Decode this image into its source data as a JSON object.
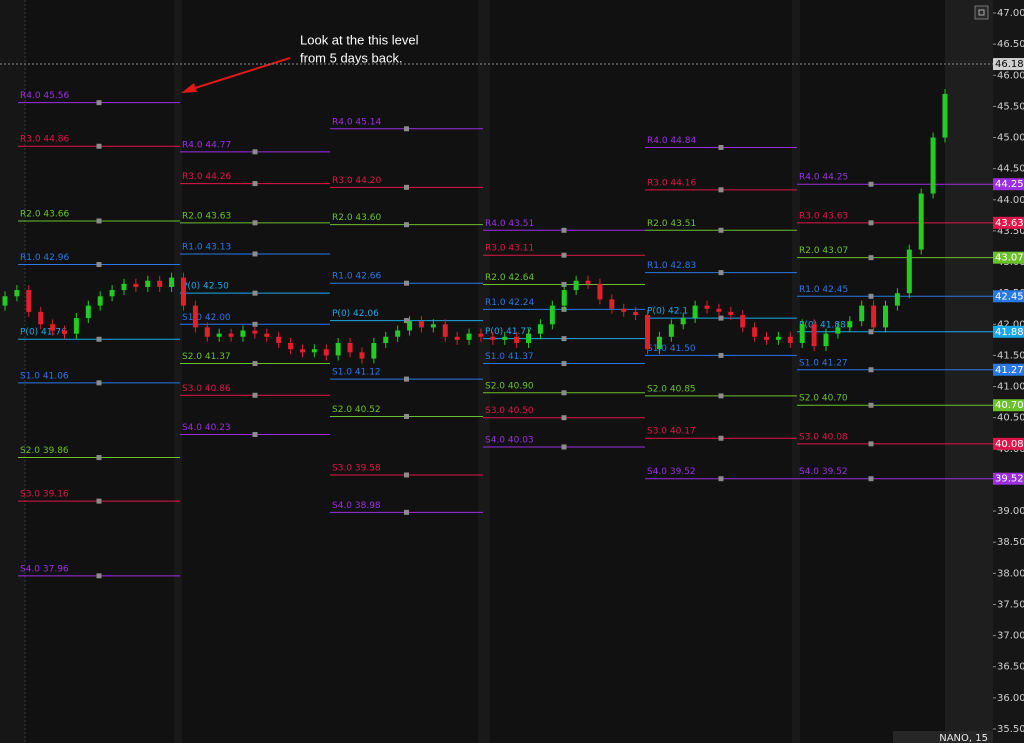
{
  "chart_data": {
    "type": "candlestick",
    "annotation": [
      "Look at the this level",
      "from 5 days back."
    ],
    "footer_label": "NANO, 15",
    "ylim": [
      35.5,
      47
    ],
    "yticks": [
      {
        "value": 35.5,
        "label": "35.50"
      },
      {
        "value": 36,
        "label": "36.00"
      },
      {
        "value": 36.5,
        "label": "36.50"
      },
      {
        "value": 37,
        "label": "37.00"
      },
      {
        "value": 37.5,
        "label": "37.50"
      },
      {
        "value": 38,
        "label": "38.00"
      },
      {
        "value": 38.5,
        "label": "38.50"
      },
      {
        "value": 39,
        "label": "39.00"
      },
      {
        "value": 39.5,
        "label": "39.50"
      },
      {
        "value": 40,
        "label": "40.00"
      },
      {
        "value": 40.5,
        "label": "40.50"
      },
      {
        "value": 41,
        "label": "41.00"
      },
      {
        "value": 41.5,
        "label": "41.50"
      },
      {
        "value": 42,
        "label": "42.00"
      },
      {
        "value": 42.5,
        "label": "42.50"
      },
      {
        "value": 43,
        "label": "43.00"
      },
      {
        "value": 43.5,
        "label": "43.50"
      },
      {
        "value": 44,
        "label": "44.00"
      },
      {
        "value": 44.5,
        "label": "44.50"
      },
      {
        "value": 45,
        "label": "45.00"
      },
      {
        "value": 45.5,
        "label": "45.50"
      },
      {
        "value": 46,
        "label": "46.00"
      },
      {
        "value": 46.5,
        "label": "46.50"
      },
      {
        "value": 47,
        "label": "47.00"
      }
    ],
    "price_line": {
      "value": 46.18,
      "label": "46.18"
    },
    "up_color": "#22cc22",
    "down_color": "#e0202a",
    "level_colors": [
      "#9b30e0",
      "#e0164a",
      "#6cc02c",
      "#2a78e4",
      "#19a8e8",
      "#2a78e4",
      "#6cc02c",
      "#e0164a",
      "#9b30e0"
    ],
    "days": [
      {
        "levels": [
          {
            "label": "R4.0 45.56",
            "value": 45.56
          },
          {
            "label": "R3.0 44.86",
            "value": 44.86
          },
          {
            "label": "R2.0 43.66",
            "value": 43.66
          },
          {
            "label": "R1.0 42.96",
            "value": 42.96
          },
          {
            "label": "P(0) 41.76",
            "value": 41.76
          },
          {
            "label": "S1.0 41.06",
            "value": 41.06
          },
          {
            "label": "S2.0 39.86",
            "value": 39.86
          },
          {
            "label": "S3.0 39.16",
            "value": 39.16
          },
          {
            "label": "S4.0 37.96",
            "value": 37.96
          }
        ]
      },
      {
        "levels": [
          {
            "label": "R4.0 44.77",
            "value": 44.77
          },
          {
            "label": "R3.0 44.26",
            "value": 44.26
          },
          {
            "label": "R2.0 43.63",
            "value": 43.63
          },
          {
            "label": "R1.0 43.13",
            "value": 43.13
          },
          {
            "label": "P(0) 42.50",
            "value": 42.5
          },
          {
            "label": "S1.0 42.00",
            "value": 42
          },
          {
            "label": "S2.0 41.37",
            "value": 41.37
          },
          {
            "label": "S3.0 40.86",
            "value": 40.86
          },
          {
            "label": "S4.0 40.23",
            "value": 40.23
          }
        ]
      },
      {
        "levels": [
          {
            "label": "R4.0 45.14",
            "value": 45.14
          },
          {
            "label": "R3.0 44.20",
            "value": 44.2
          },
          {
            "label": "R2.0 43.60",
            "value": 43.6
          },
          {
            "label": "R1.0 42.66",
            "value": 42.66
          },
          {
            "label": "P(0) 42.06",
            "value": 42.06
          },
          {
            "label": "S1.0 41.12",
            "value": 41.12
          },
          {
            "label": "S2.0 40.52",
            "value": 40.52
          },
          {
            "label": "S3.0 39.58",
            "value": 39.58
          },
          {
            "label": "S4.0 38.98",
            "value": 38.98
          }
        ]
      },
      {
        "levels": [
          {
            "label": "R4.0 43.51",
            "value": 43.51
          },
          {
            "label": "R3.0 43.11",
            "value": 43.11
          },
          {
            "label": "R2.0 42.64",
            "value": 42.64
          },
          {
            "label": "R1.0 42.24",
            "value": 42.24
          },
          {
            "label": "P(0) 41.77",
            "value": 41.77
          },
          {
            "label": "S1.0 41.37",
            "value": 41.37
          },
          {
            "label": "S2.0 40.90",
            "value": 40.9
          },
          {
            "label": "S3.0 40.50",
            "value": 40.5
          },
          {
            "label": "S4.0 40.03",
            "value": 40.03
          }
        ]
      },
      {
        "levels": [
          {
            "label": "R4.0 44.84",
            "value": 44.84
          },
          {
            "label": "R3.0 44.16",
            "value": 44.16
          },
          {
            "label": "R2.0 43.51",
            "value": 43.51
          },
          {
            "label": "R1.0 42.83",
            "value": 42.83
          },
          {
            "label": "P(0) 42.1",
            "value": 42.1
          },
          {
            "label": "S1.0 41.50",
            "value": 41.5
          },
          {
            "label": "S2.0 40.85",
            "value": 40.85
          },
          {
            "label": "S3.0 40.17",
            "value": 40.17
          },
          {
            "label": "S4.0 39.52",
            "value": 39.52
          }
        ]
      },
      {
        "levels": [
          {
            "label": "R4.0 44.25",
            "value": 44.25,
            "tag": "44.25"
          },
          {
            "label": "R3.0 43.63",
            "value": 43.63,
            "tag": "43.63"
          },
          {
            "label": "R2.0 43.07",
            "value": 43.07,
            "tag": "43.07"
          },
          {
            "label": "R1.0 42.45",
            "value": 42.45,
            "tag": "42.45"
          },
          {
            "label": "P(0) 41.88",
            "value": 41.88,
            "tag": "41.88"
          },
          {
            "label": "S1.0 41.27",
            "value": 41.27,
            "tag": "41.27"
          },
          {
            "label": "S2.0 40.70",
            "value": 40.7,
            "tag": "40.70"
          },
          {
            "label": "S3.0 40.08",
            "value": 40.08,
            "tag": "40.08"
          },
          {
            "label": "S4.0 39.52",
            "value": 39.52,
            "tag": "39.52"
          }
        ]
      }
    ],
    "candles": [
      [
        42.3,
        42.53,
        42.22,
        42.45
      ],
      [
        42.45,
        42.63,
        42.37,
        42.55
      ],
      [
        42.55,
        42.63,
        42.12,
        42.2
      ],
      [
        42.2,
        42.28,
        41.92,
        42.0
      ],
      [
        42.0,
        42.08,
        41.82,
        41.9
      ],
      [
        41.9,
        41.98,
        41.77,
        41.85
      ],
      [
        41.85,
        42.18,
        41.77,
        42.1
      ],
      [
        42.1,
        42.38,
        42.02,
        42.3
      ],
      [
        42.3,
        42.53,
        42.22,
        42.45
      ],
      [
        42.45,
        42.63,
        42.37,
        42.55
      ],
      [
        42.55,
        42.73,
        42.47,
        42.65
      ],
      [
        42.65,
        42.73,
        42.52,
        42.6
      ],
      [
        42.6,
        42.78,
        42.52,
        42.7
      ],
      [
        42.7,
        42.78,
        42.52,
        42.6
      ],
      [
        42.6,
        42.83,
        42.52,
        42.75
      ],
      [
        42.75,
        42.83,
        42.22,
        42.3
      ],
      [
        42.3,
        42.38,
        41.87,
        41.95
      ],
      [
        41.95,
        42.03,
        41.72,
        41.8
      ],
      [
        41.8,
        41.93,
        41.72,
        41.85
      ],
      [
        41.85,
        41.93,
        41.72,
        41.8
      ],
      [
        41.8,
        41.98,
        41.72,
        41.9
      ],
      [
        41.9,
        41.98,
        41.77,
        41.85
      ],
      [
        41.85,
        41.93,
        41.72,
        41.8
      ],
      [
        41.8,
        41.88,
        41.62,
        41.7
      ],
      [
        41.7,
        41.78,
        41.52,
        41.6
      ],
      [
        41.6,
        41.68,
        41.47,
        41.55
      ],
      [
        41.55,
        41.68,
        41.47,
        41.6
      ],
      [
        41.6,
        41.68,
        41.42,
        41.5
      ],
      [
        41.5,
        41.78,
        41.42,
        41.7
      ],
      [
        41.7,
        41.78,
        41.47,
        41.55
      ],
      [
        41.55,
        41.63,
        41.37,
        41.45
      ],
      [
        41.45,
        41.78,
        41.37,
        41.7
      ],
      [
        41.7,
        41.88,
        41.62,
        41.8
      ],
      [
        41.8,
        41.98,
        41.72,
        41.9
      ],
      [
        41.9,
        42.13,
        41.82,
        42.05
      ],
      [
        42.05,
        42.13,
        41.87,
        41.95
      ],
      [
        41.95,
        42.08,
        41.87,
        42.0
      ],
      [
        42.0,
        42.08,
        41.72,
        41.8
      ],
      [
        41.8,
        41.88,
        41.67,
        41.75
      ],
      [
        41.75,
        41.93,
        41.67,
        41.85
      ],
      [
        41.85,
        41.93,
        41.72,
        41.8
      ],
      [
        41.8,
        41.88,
        41.67,
        41.75
      ],
      [
        41.75,
        41.88,
        41.67,
        41.8
      ],
      [
        41.8,
        41.88,
        41.62,
        41.7
      ],
      [
        41.7,
        41.93,
        41.62,
        41.85
      ],
      [
        41.85,
        42.08,
        41.77,
        42.0
      ],
      [
        42.0,
        42.38,
        41.92,
        42.3
      ],
      [
        42.3,
        42.63,
        42.22,
        42.55
      ],
      [
        42.55,
        42.78,
        42.47,
        42.7
      ],
      [
        42.7,
        42.78,
        42.57,
        42.65
      ],
      [
        42.65,
        42.73,
        42.32,
        42.4
      ],
      [
        42.4,
        42.48,
        42.17,
        42.25
      ],
      [
        42.25,
        42.33,
        42.12,
        42.2
      ],
      [
        42.2,
        42.28,
        42.07,
        42.15
      ],
      [
        42.15,
        42.23,
        41.52,
        41.6
      ],
      [
        41.6,
        41.88,
        41.52,
        41.8
      ],
      [
        41.8,
        42.08,
        41.72,
        42.0
      ],
      [
        42.0,
        42.18,
        41.92,
        42.1
      ],
      [
        42.1,
        42.38,
        42.02,
        42.3
      ],
      [
        42.3,
        42.38,
        42.17,
        42.25
      ],
      [
        42.25,
        42.33,
        42.12,
        42.2
      ],
      [
        42.2,
        42.28,
        42.07,
        42.15
      ],
      [
        42.15,
        42.23,
        41.87,
        41.95
      ],
      [
        41.95,
        42.03,
        41.72,
        41.8
      ],
      [
        41.8,
        41.88,
        41.67,
        41.75
      ],
      [
        41.75,
        41.88,
        41.67,
        41.8
      ],
      [
        41.8,
        41.88,
        41.62,
        41.7
      ],
      [
        41.7,
        42.08,
        41.62,
        42.0
      ],
      [
        42.0,
        42.08,
        41.57,
        41.65
      ],
      [
        41.65,
        41.93,
        41.57,
        41.85
      ],
      [
        41.85,
        42.03,
        41.77,
        41.95
      ],
      [
        41.95,
        42.13,
        41.87,
        42.05
      ],
      [
        42.05,
        42.38,
        41.97,
        42.3
      ],
      [
        42.3,
        42.38,
        41.87,
        41.95
      ],
      [
        41.95,
        42.38,
        41.87,
        42.3
      ],
      [
        42.3,
        42.58,
        42.22,
        42.5
      ],
      [
        42.5,
        43.28,
        42.42,
        43.2
      ],
      [
        43.2,
        44.18,
        43.12,
        44.1
      ],
      [
        44.1,
        45.08,
        44.02,
        45.0
      ],
      [
        45.0,
        45.78,
        44.92,
        45.7
      ]
    ]
  }
}
